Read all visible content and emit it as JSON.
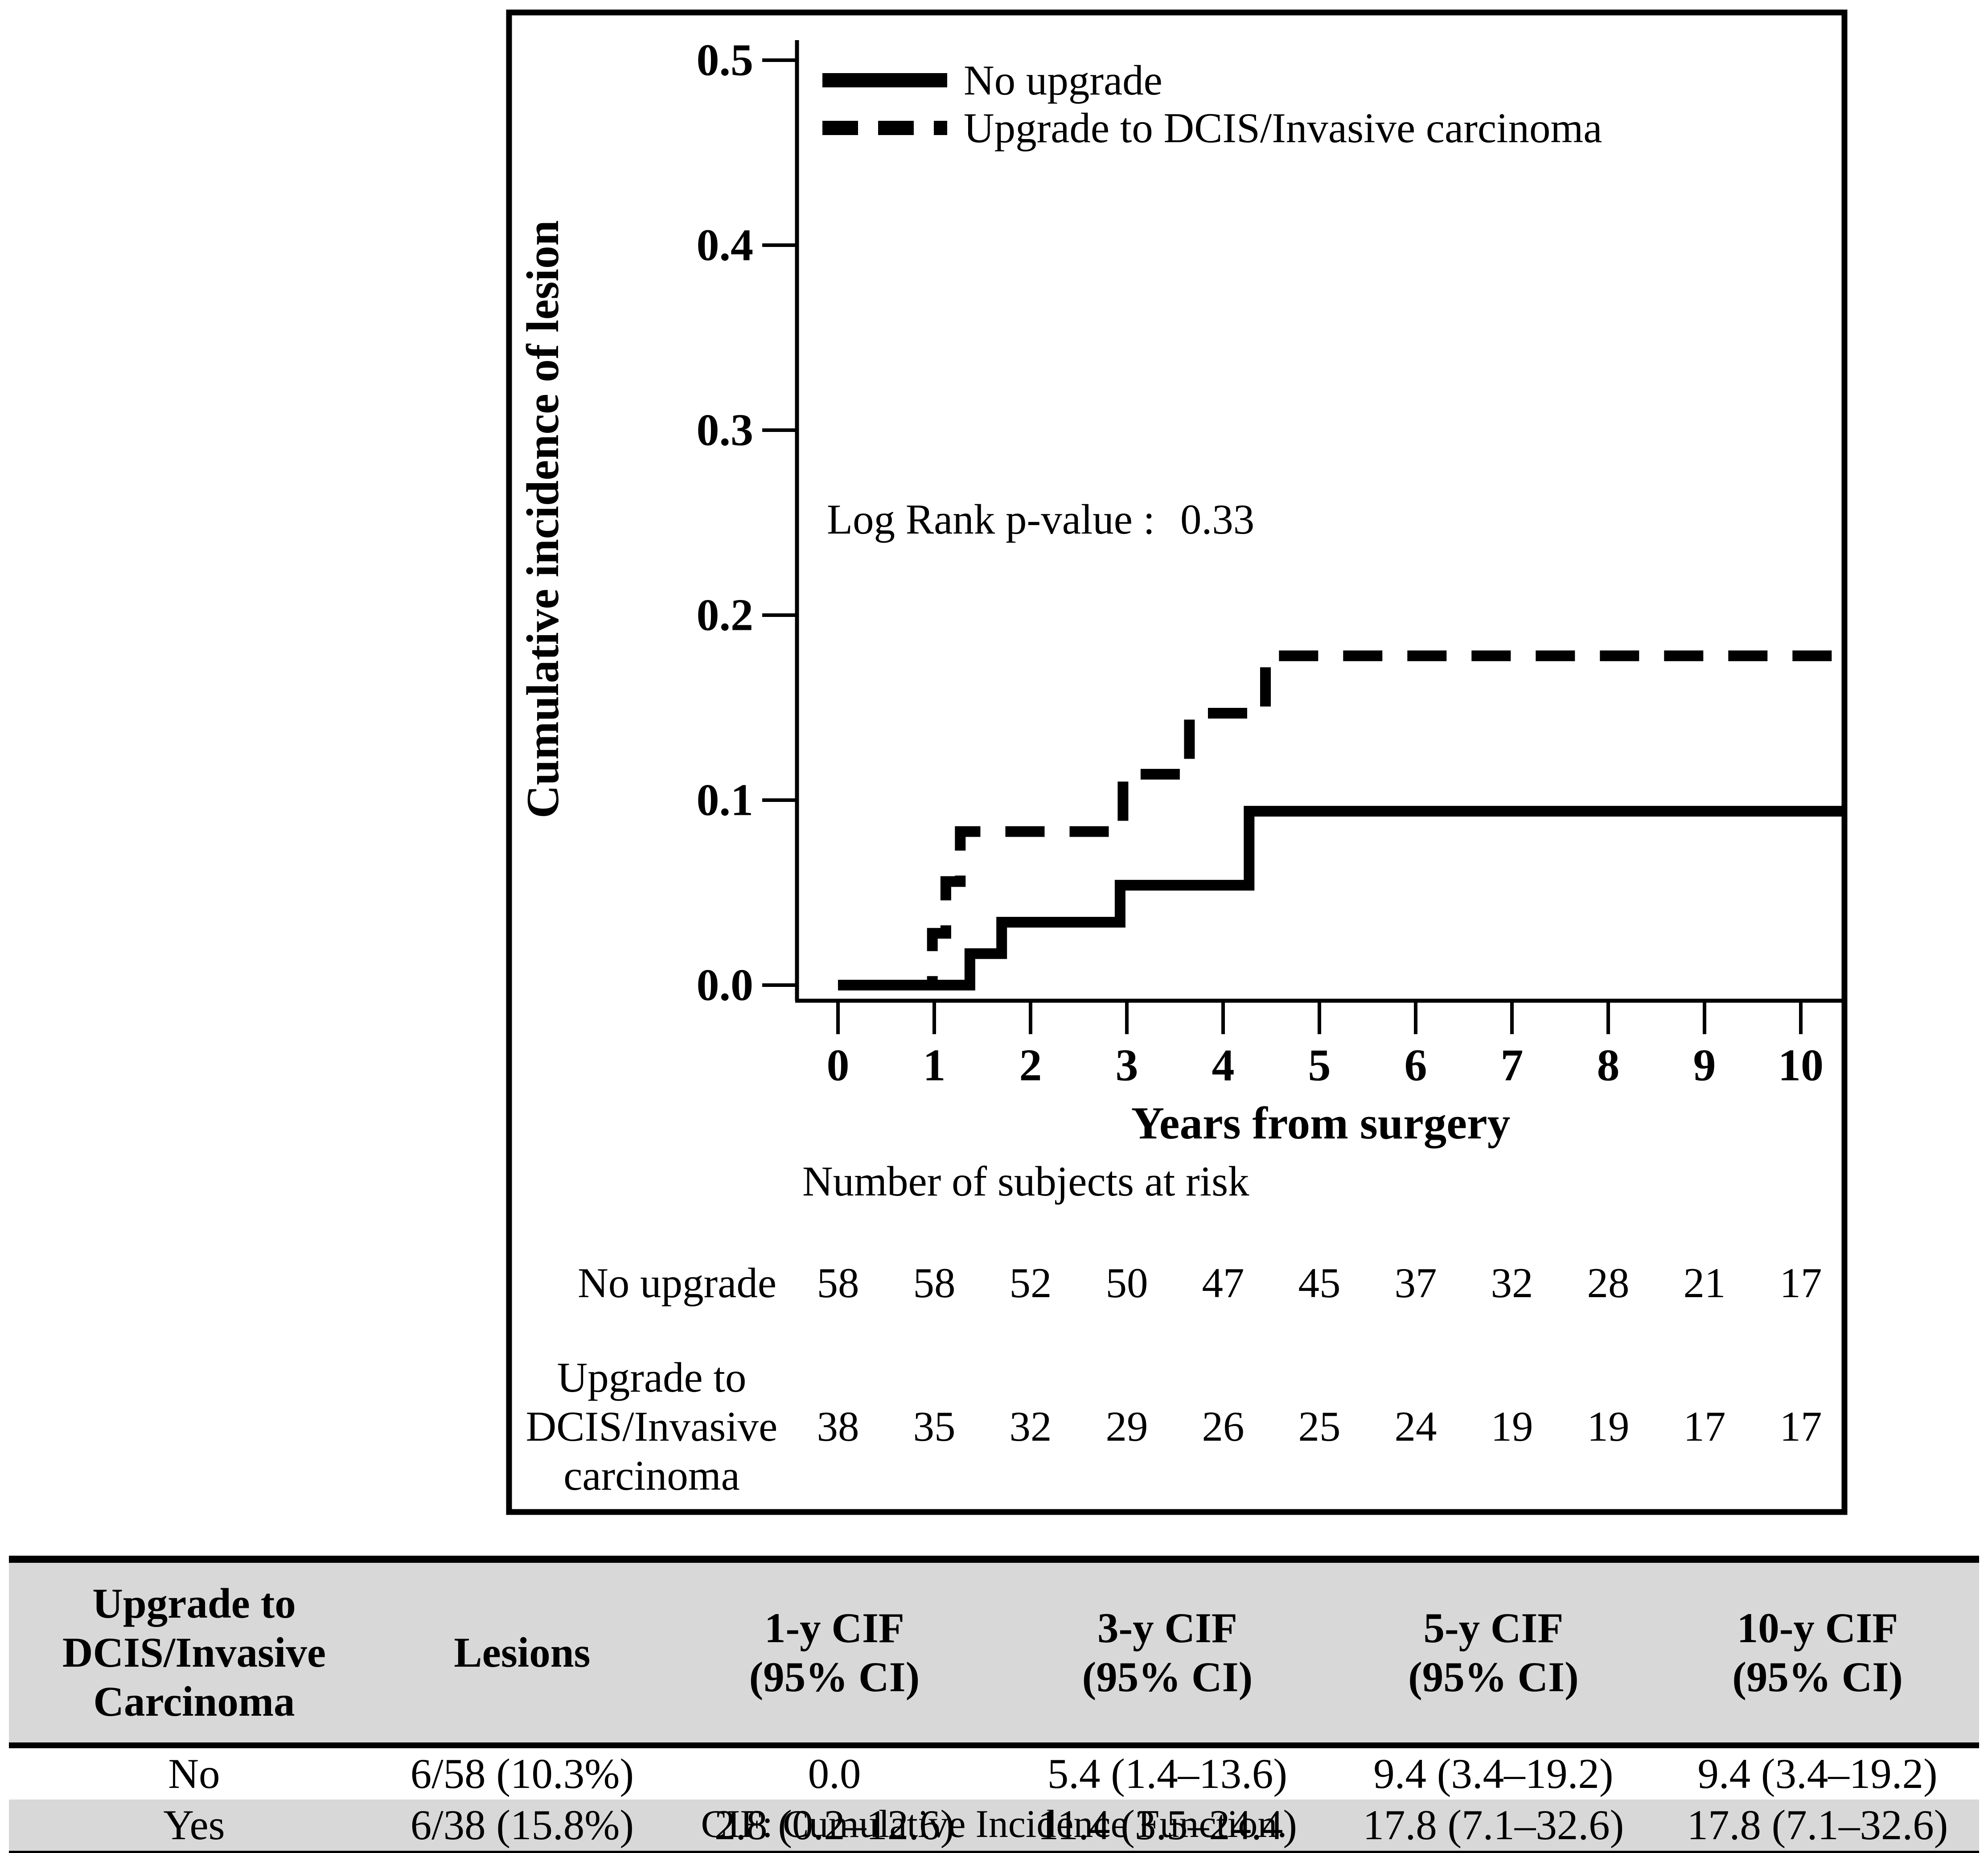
{
  "colors": {
    "ink": "#000000",
    "shade": "#d8d8d8",
    "background": "#ffffff"
  },
  "chart_data": {
    "type": "line",
    "subtype": "cumulative-incidence-step",
    "title": "",
    "xlabel": "Years from surgery",
    "ylabel": "Cumulative incidence of lesion",
    "xlim": [
      0,
      10.5
    ],
    "ylim": [
      0,
      0.5
    ],
    "grid": false,
    "legend_position": "top-left-inside",
    "x_ticks": [
      "0",
      "1",
      "2",
      "3",
      "4",
      "5",
      "6",
      "7",
      "8",
      "9",
      "10"
    ],
    "y_ticks": [
      "0.0",
      "0.1",
      "0.2",
      "0.3",
      "0.4",
      "0.5"
    ],
    "y_tick_values": [
      0,
      0.1,
      0.2,
      0.3,
      0.4,
      0.5
    ],
    "annotation": {
      "label": "Log Rank p-value :",
      "value": "0.33"
    },
    "series": [
      {
        "name": "No upgrade",
        "style": "solid",
        "points": [
          [
            0,
            0
          ],
          [
            1.37,
            0
          ],
          [
            1.37,
            0.017
          ],
          [
            1.7,
            0.017
          ],
          [
            1.7,
            0.034
          ],
          [
            2.93,
            0.034
          ],
          [
            2.93,
            0.054
          ],
          [
            4.27,
            0.054
          ],
          [
            4.27,
            0.094
          ],
          [
            10.45,
            0.094
          ]
        ]
      },
      {
        "name": "Upgrade to DCIS/Invasive carcinoma",
        "style": "dashed",
        "points": [
          [
            0,
            0
          ],
          [
            0.98,
            0
          ],
          [
            0.98,
            0.028
          ],
          [
            1.12,
            0.028
          ],
          [
            1.12,
            0.056
          ],
          [
            1.27,
            0.056
          ],
          [
            1.27,
            0.083
          ],
          [
            2.96,
            0.083
          ],
          [
            2.96,
            0.114
          ],
          [
            3.65,
            0.114
          ],
          [
            3.65,
            0.147
          ],
          [
            4.44,
            0.147
          ],
          [
            4.44,
            0.178
          ],
          [
            10.45,
            0.178
          ]
        ]
      }
    ],
    "risk_table": {
      "title": "Number of subjects at risk",
      "rows": [
        {
          "label_lines": [
            "No upgrade"
          ],
          "counts": [
            "58",
            "58",
            "52",
            "50",
            "47",
            "45",
            "37",
            "32",
            "28",
            "21",
            "17"
          ]
        },
        {
          "label_lines": [
            "Upgrade to",
            "DCIS/Invasive",
            "carcinoma"
          ],
          "counts": [
            "38",
            "35",
            "32",
            "29",
            "26",
            "25",
            "24",
            "19",
            "19",
            "17",
            "17"
          ]
        }
      ]
    }
  },
  "summary_table": {
    "headers": [
      [
        "Upgrade to",
        "DCIS/Invasive",
        "Carcinoma"
      ],
      [
        "Lesions"
      ],
      [
        "1-y CIF",
        "(95% CI)"
      ],
      [
        "3-y CIF",
        "(95% CI)"
      ],
      [
        "5-y CIF",
        "(95% CI)"
      ],
      [
        "10-y CIF",
        "(95% CI)"
      ]
    ],
    "rows": [
      {
        "cells": [
          "No",
          "6/58 (10.3%)",
          "0.0",
          "5.4 (1.4–13.6)",
          "9.4 (3.4–19.2)",
          "9.4 (3.4–19.2)"
        ]
      },
      {
        "cells": [
          "Yes",
          "6/38 (15.8%)",
          "2.8 (0.2–12.6)",
          "11.4 (3.5–24.4)",
          "17.8 (7.1–32.6)",
          "17.8 (7.1–32.6)"
        ]
      }
    ],
    "footnote": "CIF: Cumulative Incidence Function."
  }
}
